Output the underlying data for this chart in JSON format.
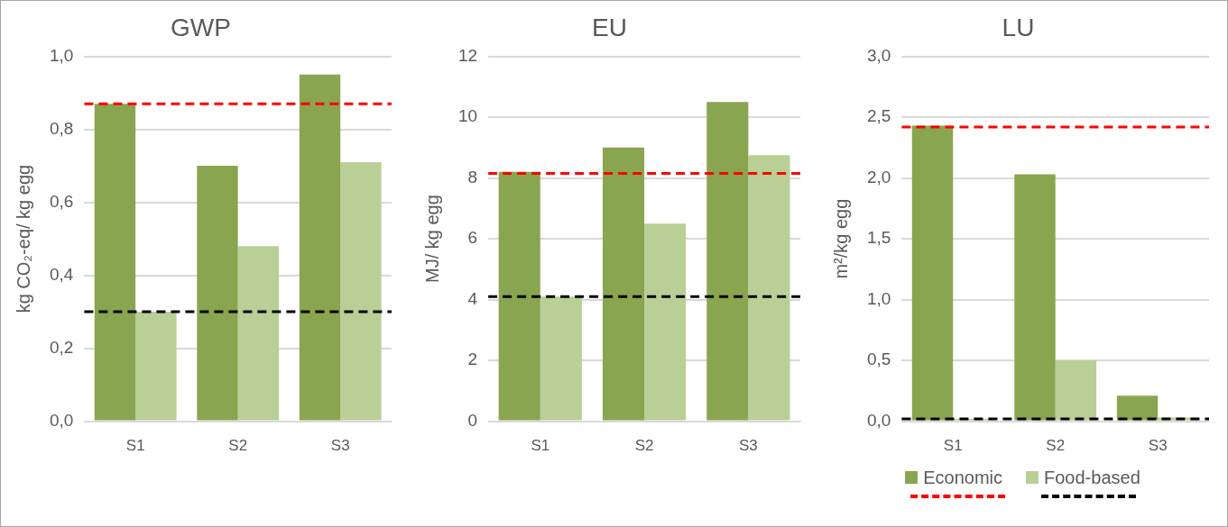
{
  "chart_data": [
    {
      "type": "bar",
      "title": "GWP",
      "ylabel": "kg CO₂-eq/ kg egg",
      "categories": [
        "S1",
        "S2",
        "S3"
      ],
      "series": [
        {
          "color": "#8aa54f",
          "values": [
            0.87,
            0.7,
            0.95
          ]
        },
        {
          "color": "#b9cf96",
          "values": [
            0.3,
            0.48,
            0.71
          ]
        }
      ],
      "ylim": [
        0,
        1
      ],
      "yticks": [
        {
          "value": 0,
          "label": "0,0"
        },
        {
          "value": 0.2,
          "label": "0,2"
        },
        {
          "value": 0.4,
          "label": "0,4"
        },
        {
          "value": 0.6,
          "label": "0,6"
        },
        {
          "value": 0.8,
          "label": "0,8"
        },
        {
          "value": 1,
          "label": "1,0"
        }
      ],
      "grid": "y",
      "legend": false,
      "ref_lines": [
        {
          "axis": "y",
          "value": 0.87,
          "color": "#ff0000",
          "line_style": "dashed"
        },
        {
          "axis": "y",
          "value": 0.3,
          "color": "#000000",
          "line_style": "dashed"
        }
      ]
    },
    {
      "type": "bar",
      "title": "EU",
      "ylabel": "MJ/ kg egg",
      "categories": [
        "S1",
        "S2",
        "S3"
      ],
      "series": [
        {
          "color": "#8aa54f",
          "values": [
            8.2,
            9.0,
            10.5
          ]
        },
        {
          "color": "#b9cf96",
          "values": [
            4.1,
            6.5,
            8.75
          ]
        }
      ],
      "ylim": [
        0,
        12
      ],
      "yticks": [
        0,
        2,
        4,
        6,
        8,
        10,
        12
      ],
      "grid": "y",
      "legend": false,
      "ref_lines": [
        {
          "axis": "y",
          "value": 8.15,
          "color": "#ff0000",
          "line_style": "dashed"
        },
        {
          "axis": "y",
          "value": 4.1,
          "color": "#000000",
          "line_style": "dashed"
        }
      ]
    },
    {
      "type": "bar",
      "title": "LU",
      "ylabel": "m²/kg egg",
      "categories": [
        "S1",
        "S2",
        "S3"
      ],
      "series": [
        {
          "name": "Economic",
          "color": "#8aa54f",
          "values": [
            2.43,
            2.03,
            0.21
          ]
        },
        {
          "name": "Food-based",
          "color": "#b9cf96",
          "values": [
            0.02,
            0.5,
            0.03
          ]
        }
      ],
      "ylim": [
        0,
        3
      ],
      "yticks": [
        {
          "value": 0,
          "label": "0,0"
        },
        {
          "value": 0.5,
          "label": "0,5"
        },
        {
          "value": 1,
          "label": "1,0"
        },
        {
          "value": 1.5,
          "label": "1,5"
        },
        {
          "value": 2,
          "label": "2,0"
        },
        {
          "value": 2.5,
          "label": "2,5"
        },
        {
          "value": 3,
          "label": "3,0"
        }
      ],
      "grid": "y",
      "legend": "bottom",
      "ref_lines": [
        {
          "axis": "y",
          "value": 2.42,
          "color": "#ff0000",
          "line_style": "dashed"
        },
        {
          "axis": "y",
          "value": 0.02,
          "color": "#000000",
          "line_style": "dashed"
        }
      ]
    }
  ]
}
